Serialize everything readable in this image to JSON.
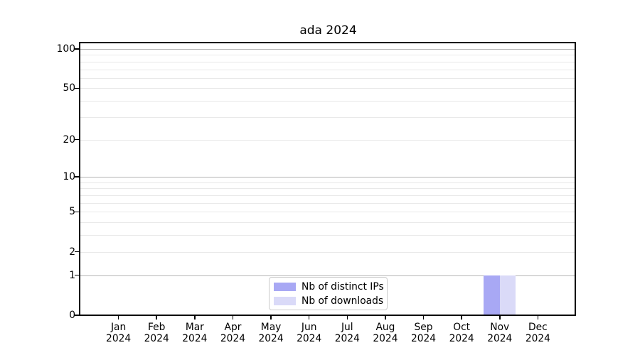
{
  "chart_data": {
    "type": "bar",
    "title": "ada 2024",
    "categories": [
      "Jan 2024",
      "Feb 2024",
      "Mar 2024",
      "Apr 2024",
      "May 2024",
      "Jun 2024",
      "Jul 2024",
      "Aug 2024",
      "Sep 2024",
      "Oct 2024",
      "Nov 2024",
      "Dec 2024"
    ],
    "series": [
      {
        "name": "Nb of distinct IPs",
        "color": "#a8a8f4",
        "values": [
          0,
          0,
          0,
          0,
          0,
          0,
          0,
          0,
          0,
          0,
          1,
          0
        ]
      },
      {
        "name": "Nb of downloads",
        "color": "#dadaf8",
        "values": [
          0,
          0,
          0,
          0,
          0,
          0,
          0,
          0,
          0,
          0,
          1,
          0
        ]
      }
    ],
    "yaxis": {
      "scale": "log1p",
      "labeled_ticks": [
        0,
        1,
        2,
        5,
        10,
        20,
        50,
        100
      ],
      "major_gridlines": [
        1,
        10,
        100
      ],
      "minor_gridlines": [
        2,
        3,
        4,
        5,
        6,
        7,
        8,
        9,
        20,
        30,
        40,
        50,
        60,
        70,
        80,
        90
      ],
      "ylim": [
        0,
        112
      ]
    },
    "legend": {
      "position": "lower center"
    },
    "grid": "horizontal",
    "colors": {
      "major_grid": "#b5b5b5",
      "minor_grid": "#e9e9e9",
      "spine": "#000000",
      "legend_border": "#cccccc",
      "background": "#ffffff"
    }
  }
}
